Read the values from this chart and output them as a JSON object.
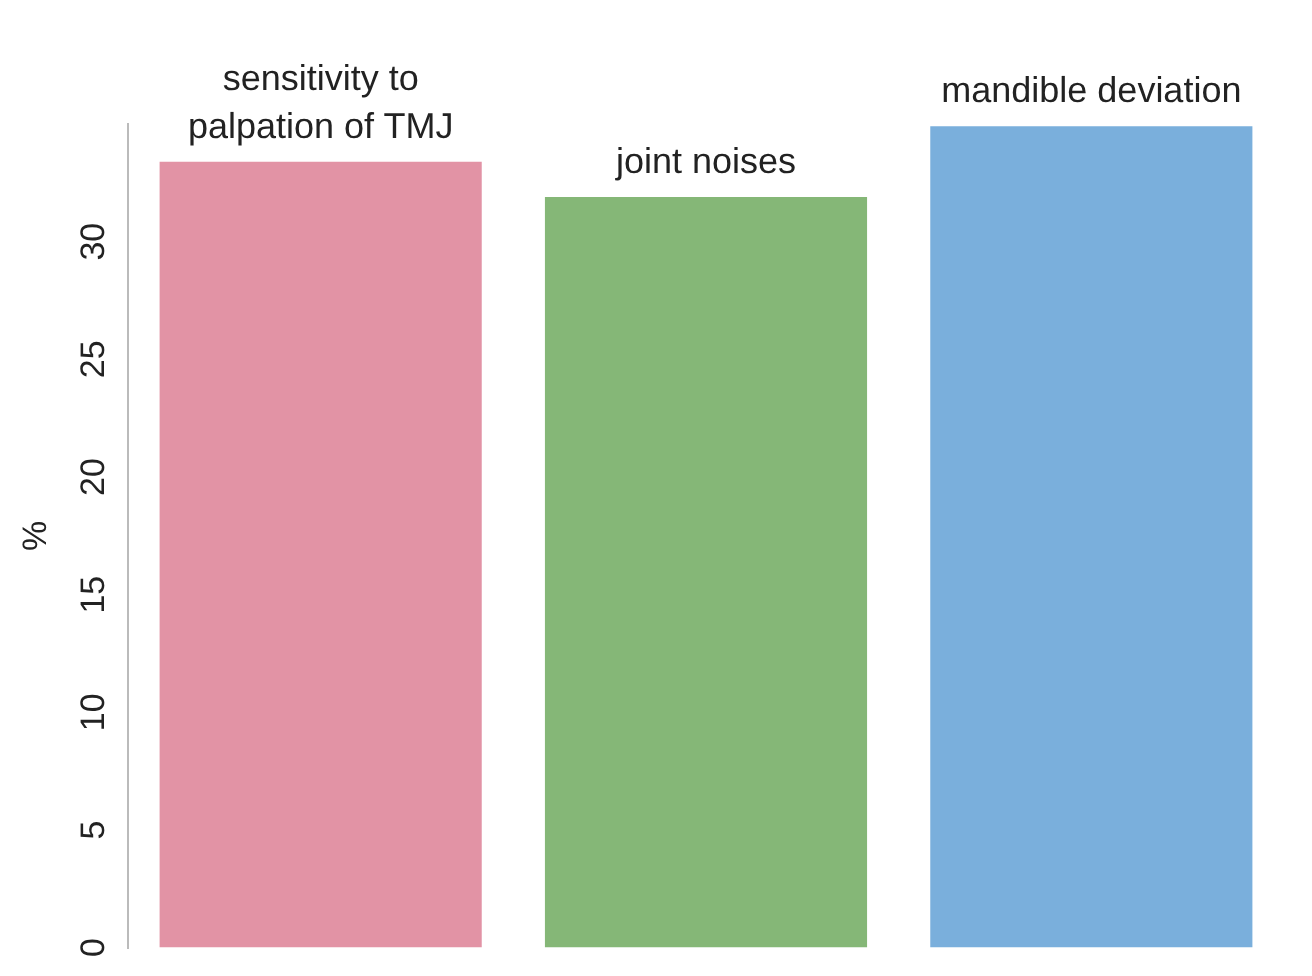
{
  "chart_data": {
    "type": "bar",
    "categories": [
      "sensitivity to palpation of TMJ",
      "joint noises",
      "mandible deviation"
    ],
    "values": [
      33.4,
      31.9,
      34.9
    ],
    "colors": [
      "#e293a5",
      "#85b777",
      "#7aafdc"
    ],
    "ylabel": "%",
    "ylim": [
      0,
      35
    ],
    "yticks": [
      0,
      5,
      10,
      15,
      20,
      25,
      30
    ],
    "grid": false,
    "legend": false
  }
}
